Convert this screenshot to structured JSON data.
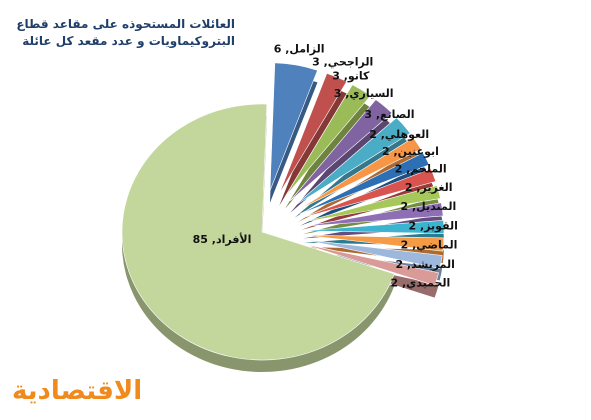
{
  "chart_data": {
    "type": "pie",
    "title": [
      "العائلات المستحوذه على مقاعد قطاع",
      "البتروكيماويات و عدد مقعد كل عائلة"
    ],
    "values": [
      6,
      3,
      3,
      3,
      3,
      2,
      2,
      2,
      2,
      2,
      2,
      2,
      2,
      2,
      85
    ],
    "value_labels": [
      "الزامل, 6",
      "الراجحي, 3",
      "كانو, 3",
      "السياري, 3",
      "الصانع, 3",
      "العوهلي, 2",
      "ابوعنين, 2",
      "الملحم, 2",
      "الغرير, 2",
      "المنديل, 2",
      "القويز, 2",
      "الماضي, 2",
      "المريشد, 2",
      "الحميدي, 2",
      "الأفراد, 85"
    ],
    "colors": [
      "#4f81bd",
      "#c0504d",
      "#9bbb59",
      "#8064a2",
      "#4bacc6",
      "#f79646",
      "#2c6fb5",
      "#d9534f",
      "#a6c85a",
      "#8e6fb5",
      "#3cb3cf",
      "#f59a45",
      "#9db8dc",
      "#d99a98",
      "#c3d69b"
    ]
  },
  "logo": "الاقتصادية"
}
